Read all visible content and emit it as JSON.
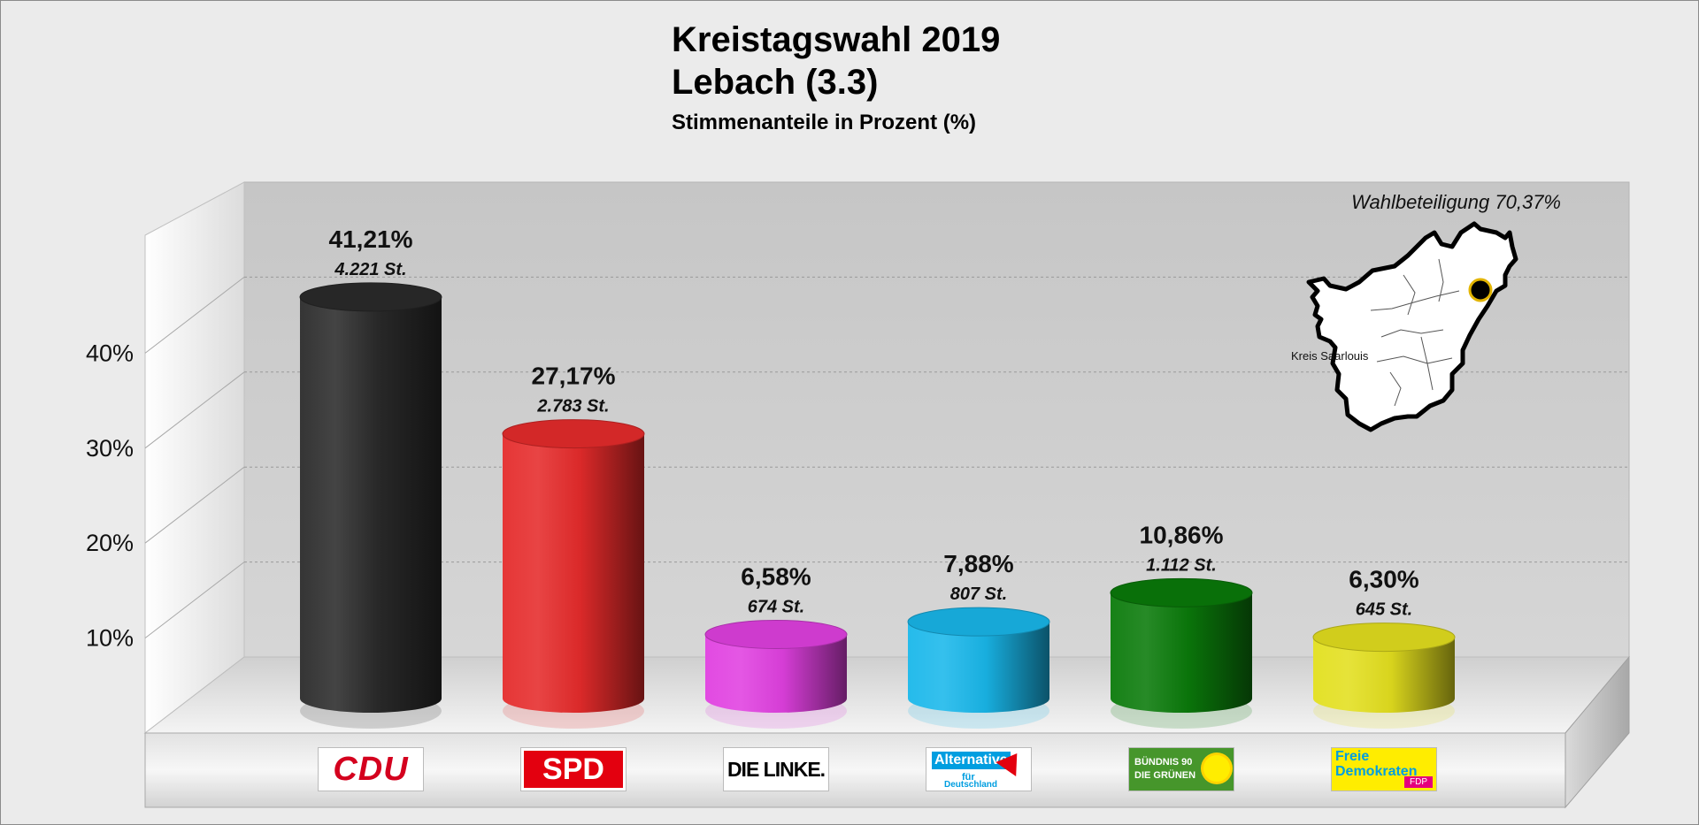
{
  "chart_data": {
    "type": "bar",
    "title": "Kreistagswahl 2019",
    "subtitle": "Lebach (3.3)",
    "caption": "Stimmenanteile in Prozent (%)",
    "annotation": "Wahlbeteiligung 70,37%",
    "map_label": "Kreis Saarlouis",
    "categories": [
      "CDU",
      "SPD",
      "DIE LINKE",
      "Alternative für Deutschland",
      "BÜNDNIS 90 DIE GRÜNEN",
      "Freie Demokraten FDP"
    ],
    "values": [
      41.21,
      27.17,
      6.58,
      7.88,
      10.86,
      6.3
    ],
    "value_labels": [
      "41,21%",
      "27,17%",
      "6,58%",
      "7,88%",
      "10,86%",
      "6,30%"
    ],
    "votes_labels": [
      "4.221 St.",
      "2.783 St.",
      "674 St.",
      "807 St.",
      "1.112 St.",
      "645 St."
    ],
    "colors": [
      "#2a2a2a",
      "#e52b2b",
      "#e040e0",
      "#19b7ea",
      "#0a7a0a",
      "#e3df1e"
    ],
    "yticks": [
      "10%",
      "20%",
      "30%",
      "40%"
    ],
    "ytick_values": [
      10,
      20,
      30,
      40
    ],
    "ylim": [
      0,
      50
    ],
    "grid": true
  },
  "logos": {
    "cdu": "CDU",
    "spd": "SPD",
    "linke": "DIE LINKE.",
    "afd_1": "Alternative",
    "afd_2": "für",
    "afd_3": "Deutschland",
    "gruene_1": "BÜNDNIS 90",
    "gruene_2": "DIE GRÜNEN",
    "fdp_1": "Freie",
    "fdp_2": "Demokraten",
    "fdp_3": "FDP"
  }
}
